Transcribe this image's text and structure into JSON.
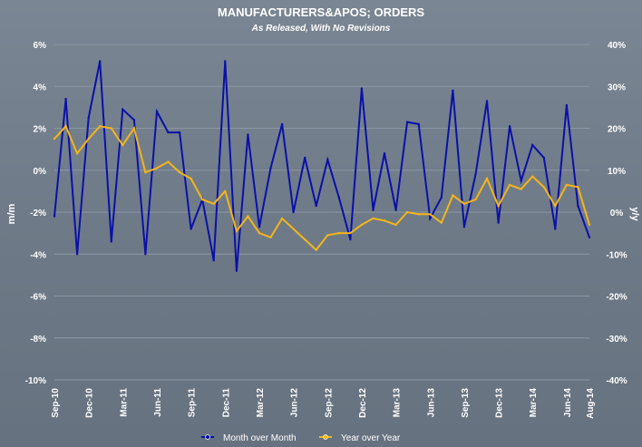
{
  "chart_data": {
    "type": "line",
    "title": "MANUFACTURERS&APOS; ORDERS",
    "subtitle": "As Released, With No Revisions",
    "ylabel": "m/m",
    "y2label": "y/y",
    "ylim": [
      -10,
      6
    ],
    "y2lim": [
      -40,
      40
    ],
    "yticks": [
      "6%",
      "4%",
      "2%",
      "0%",
      "-2%",
      "-4%",
      "-6%",
      "-8%",
      "-10%"
    ],
    "y2ticks": [
      "40%",
      "30%",
      "20%",
      "10%",
      "0%",
      "-10%",
      "-20%",
      "-30%",
      "-40%"
    ],
    "xtick_labels": [
      "Sep-10",
      "Dec-10",
      "Mar-11",
      "Jun-11",
      "Sep-11",
      "Dec-11",
      "Mar-12",
      "Jun-12",
      "Sep-12",
      "Dec-12",
      "Mar-13",
      "Jun-13",
      "Sep-13",
      "Dec-13",
      "Mar-14",
      "Jun-14",
      "Aug-14"
    ],
    "x": [
      "Sep-10",
      "Oct-10",
      "Nov-10",
      "Dec-10",
      "Jan-11",
      "Feb-11",
      "Mar-11",
      "Apr-11",
      "May-11",
      "Jun-11",
      "Jul-11",
      "Aug-11",
      "Sep-11",
      "Oct-11",
      "Nov-11",
      "Dec-11",
      "Jan-12",
      "Feb-12",
      "Mar-12",
      "Apr-12",
      "May-12",
      "Jun-12",
      "Jul-12",
      "Aug-12",
      "Sep-12",
      "Oct-12",
      "Nov-12",
      "Dec-12",
      "Jan-13",
      "Feb-13",
      "Mar-13",
      "Apr-13",
      "May-13",
      "Jun-13",
      "Jul-13",
      "Aug-13",
      "Sep-13",
      "Oct-13",
      "Nov-13",
      "Dec-13",
      "Jan-14",
      "Feb-14",
      "Mar-14",
      "Apr-14",
      "May-14",
      "Jun-14",
      "Jul-14",
      "Aug-14"
    ],
    "series": [
      {
        "name": "Month over Month",
        "axis": "left",
        "color": "#0b10a8",
        "marker": "#0b10a8",
        "values": [
          -2.2,
          3.4,
          -4.0,
          2.5,
          5.2,
          -3.4,
          2.9,
          2.4,
          -4.0,
          2.8,
          1.8,
          1.8,
          -2.8,
          -1.4,
          -4.3,
          5.2,
          -4.8,
          1.7,
          -2.7,
          0.1,
          2.2,
          -2.0,
          0.6,
          -1.7,
          0.5,
          -1.3,
          -3.3,
          3.9,
          -1.9,
          0.8,
          -1.9,
          2.3,
          2.2,
          -2.3,
          -1.3,
          3.8,
          -2.7,
          -0.2,
          3.3,
          -2.5,
          2.1,
          -0.5,
          1.2,
          0.6,
          -2.8,
          3.1,
          -1.7,
          -3.2
        ]
      },
      {
        "name": "Year over Year",
        "axis": "right",
        "color": "#f4b51a",
        "marker": "#f4b51a",
        "values": [
          17.5,
          20.5,
          14.0,
          17.5,
          20.5,
          20.0,
          16.0,
          20.0,
          9.5,
          10.5,
          12.0,
          9.5,
          8.0,
          3.0,
          2.0,
          5.0,
          -4.5,
          -1.0,
          -5.0,
          -6.0,
          -1.5,
          -4.0,
          -6.5,
          -9.0,
          -5.5,
          -5.0,
          -5.0,
          -3.0,
          -1.5,
          -2.0,
          -3.0,
          0.0,
          -0.5,
          -0.5,
          -2.5,
          4.0,
          2.0,
          3.0,
          8.0,
          1.5,
          6.5,
          5.5,
          8.5,
          6.0,
          1.5,
          6.5,
          6.0,
          -3.0
        ]
      }
    ],
    "grid": true,
    "legend": {
      "placement": "bottom-center",
      "items": [
        "Month over Month",
        "Year over Year"
      ]
    }
  }
}
